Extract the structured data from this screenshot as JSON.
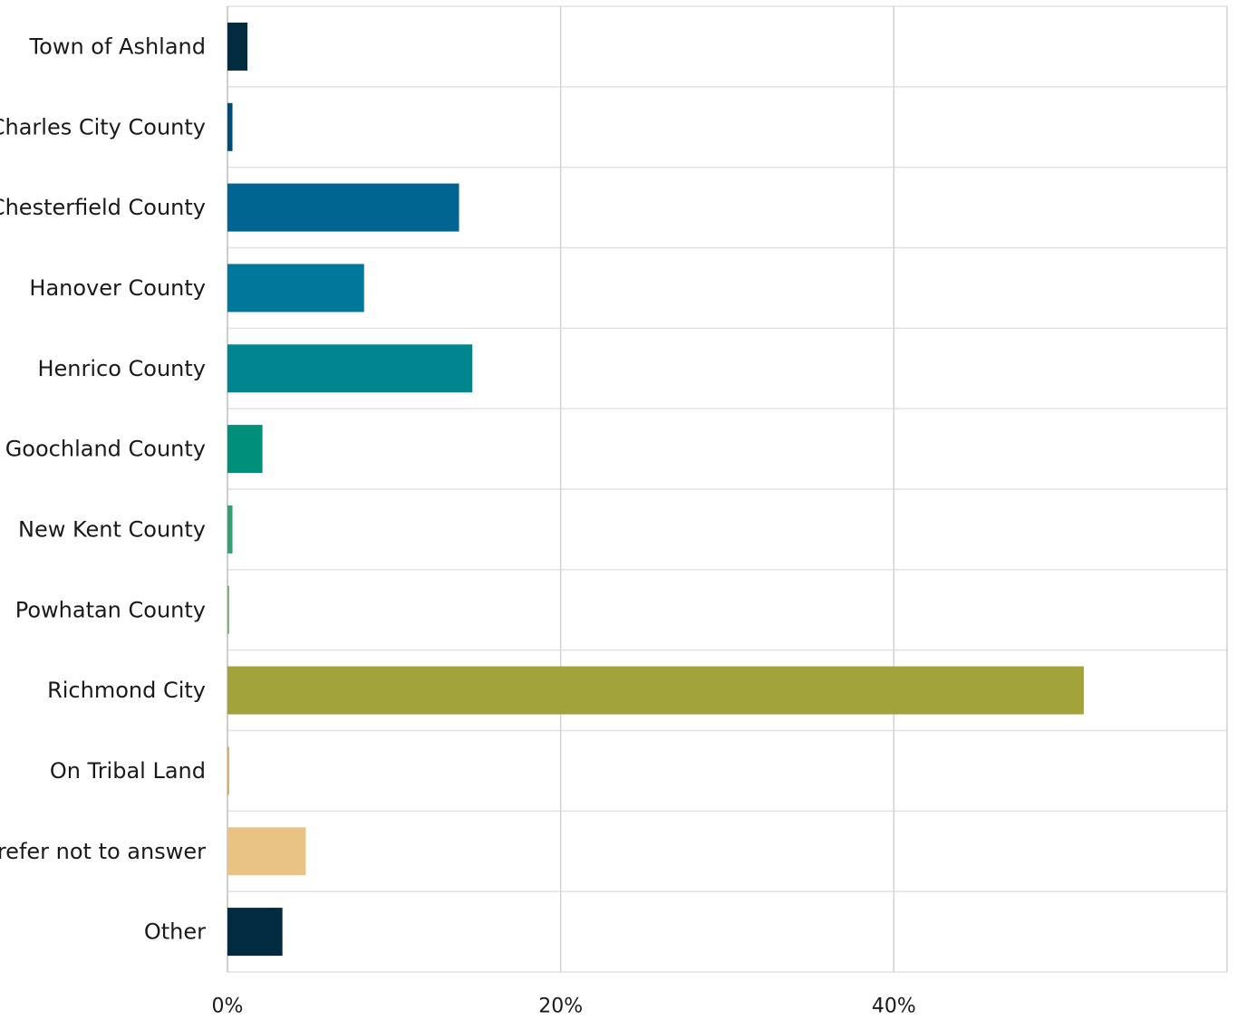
{
  "chart_data": {
    "type": "bar",
    "orientation": "horizontal",
    "categories": [
      "Town of Ashland",
      "Charles City County",
      "Chesterfield County",
      "Hanover County",
      "Henrico County",
      "Goochland County",
      "New Kent County",
      "Powhatan County",
      "Richmond City",
      "On Tribal Land",
      "Prefer not to answer",
      "Other"
    ],
    "values": [
      1.2,
      0.3,
      13.9,
      8.2,
      14.7,
      2.1,
      0.3,
      0.1,
      51.4,
      0.1,
      4.7,
      3.3
    ],
    "colors": [
      "#022b3f",
      "#004c72",
      "#006591",
      "#00789c",
      "#00868f",
      "#00907a",
      "#33a073",
      "#78ad6d",
      "#a3a33b",
      "#dca65d",
      "#e8c383",
      "#022b3f"
    ],
    "xlim": [
      0,
      60
    ],
    "xticks": [
      0,
      20,
      40
    ],
    "xtick_labels": [
      "0%",
      "20%",
      "40%"
    ],
    "grid": true,
    "title": "",
    "xlabel": "",
    "ylabel": ""
  }
}
